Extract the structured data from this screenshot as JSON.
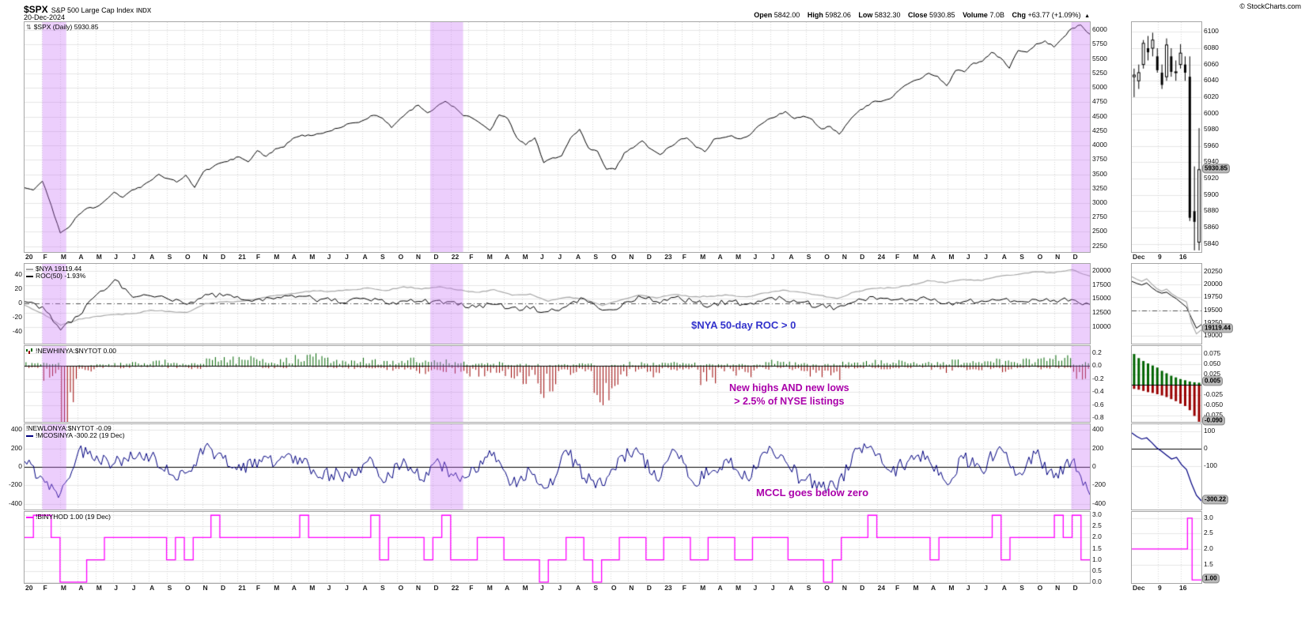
{
  "header": {
    "symbol": "$SPX",
    "name": "S&P 500 Large Cap Index",
    "exchange": "INDX",
    "date": "20-Dec-2024",
    "copyright": "© StockCharts.com",
    "quote": [
      {
        "label": "Open",
        "value": "5842.00"
      },
      {
        "label": "High",
        "value": "5982.06"
      },
      {
        "label": "Low",
        "value": "5832.30"
      },
      {
        "label": "Close",
        "value": "5930.85"
      },
      {
        "label": "Volume",
        "value": "7.0B"
      },
      {
        "label": "Chg",
        "value": "+63.77 (+1.09%)"
      }
    ],
    "arrow": "▲"
  },
  "panels": {
    "price": {
      "label": "$SPX (Daily) 5930.85"
    },
    "nya": {
      "series1_label": "$NYA 19119.44",
      "series2_label": "ROC(50) -1.93%"
    },
    "breadth": {
      "label": "!NEWHINYA:$NYTOT 0.00",
      "label2": "!NEWLONYA:$NYTOT -0.09"
    },
    "mccl": {
      "label": "!MCOSINYA -300.22 (19 Dec)"
    },
    "binyhod": {
      "label": "!BINYHOD 1.00 (19 Dec)"
    }
  },
  "x_labels": [
    "20",
    "F",
    "M",
    "A",
    "M",
    "J",
    "J",
    "A",
    "S",
    "O",
    "N",
    "D",
    "21",
    "F",
    "M",
    "A",
    "M",
    "J",
    "J",
    "A",
    "S",
    "O",
    "N",
    "D",
    "22",
    "F",
    "M",
    "A",
    "M",
    "J",
    "J",
    "A",
    "S",
    "O",
    "N",
    "D",
    "23",
    "F",
    "M",
    "A",
    "M",
    "J",
    "J",
    "A",
    "S",
    "O",
    "N",
    "D",
    "24",
    "F",
    "M",
    "A",
    "M",
    "J",
    "J",
    "A",
    "S",
    "O",
    "N",
    "D"
  ],
  "mini_x_labels": [
    "Dec",
    "9",
    "16"
  ],
  "colors": {
    "price_line": "#000000",
    "nya_line": "#a9a9a9",
    "roc_line": "#000000",
    "new_highs": "#006400",
    "new_lows": "#990000",
    "mccl_line": "#000080",
    "binyhod_line": "#ff00ff",
    "band": "rgba(199,110,247,0.34)",
    "annotation_nya": "#3333cc",
    "annotation_magenta": "#aa00aa",
    "tag_bg": "#b9b9b9"
  },
  "chart_data": [
    {
      "name": "spx_daily",
      "type": "line",
      "title": "$SPX (Daily)",
      "last_value": 5930.85,
      "x_range": [
        "Jan 2020",
        "Dec 2024"
      ],
      "values_semimonthly": [
        3265,
        3226,
        3380,
        2954,
        2480,
        2585,
        2790,
        2912,
        2930,
        3044,
        3190,
        3100,
        3225,
        3271,
        3380,
        3500,
        3425,
        3363,
        3485,
        3270,
        3545,
        3622,
        3700,
        3756,
        3800,
        3714,
        3910,
        3811,
        3940,
        3973,
        4125,
        4181,
        4170,
        4204,
        4245,
        4298,
        4370,
        4395,
        4445,
        4523,
        4470,
        4308,
        4470,
        4605,
        4700,
        4567,
        4670,
        4766,
        4670,
        4516,
        4475,
        4374,
        4260,
        4530,
        4460,
        4132,
        4010,
        4132,
        3700,
        3785,
        3820,
        4130,
        4280,
        3955,
        3900,
        3586,
        3585,
        3872,
        3960,
        4080,
        3935,
        3840,
        3970,
        4077,
        4130,
        3970,
        3890,
        4109,
        4135,
        4169,
        4115,
        4180,
        4340,
        4450,
        4505,
        4589,
        4465,
        4508,
        4450,
        4288,
        4330,
        4194,
        4400,
        4568,
        4685,
        4770,
        4780,
        4846,
        5000,
        5096,
        5150,
        5254,
        5200,
        5036,
        5300,
        5278,
        5430,
        5460,
        5615,
        5522,
        5340,
        5648,
        5620,
        5762,
        5815,
        5705,
        5870,
        6032,
        6090,
        5931
      ],
      "ylim": [
        2150,
        6140
      ],
      "yticks": [
        "6000",
        "5750",
        "5500",
        "5250",
        "5000",
        "4750",
        "4500",
        "4250",
        "4000",
        "3750",
        "3500",
        "3250",
        "3000",
        "2750",
        "2500",
        "2250"
      ],
      "highlight_bands_months": [
        [
          1.0,
          2.35
        ],
        [
          22.85,
          24.7
        ],
        [
          58.95,
          60.0
        ]
      ],
      "mini": {
        "type": "ohlc",
        "ohlc": [
          [
            6045,
            6055,
            6020,
            6047
          ],
          [
            6040,
            6060,
            6030,
            6050
          ],
          [
            6060,
            6090,
            6055,
            6086
          ],
          [
            6080,
            6095,
            6065,
            6075
          ],
          [
            6080,
            6099,
            6070,
            6090
          ],
          [
            6070,
            6080,
            6050,
            6053
          ],
          [
            6050,
            6060,
            6030,
            6035
          ],
          [
            6045,
            6092,
            6040,
            6084
          ],
          [
            6070,
            6080,
            6045,
            6051
          ],
          [
            6050,
            6065,
            6040,
            6051
          ],
          [
            6060,
            6085,
            6055,
            6074
          ],
          [
            6060,
            6070,
            6040,
            6050
          ],
          [
            6045,
            6070,
            5868,
            5872
          ],
          [
            5880,
            5935,
            5832,
            5867
          ],
          [
            5842,
            5982,
            5832,
            5931
          ]
        ],
        "ylim": [
          5830,
          6112
        ],
        "yticks": [
          "6100",
          "6080",
          "6060",
          "6040",
          "6020",
          "6000",
          "5980",
          "5960",
          "5940",
          "5920",
          "5900",
          "5880",
          "5860",
          "5840"
        ],
        "tag": "5930.85",
        "tag_value": 5930.85
      }
    },
    {
      "name": "nya_with_roc50",
      "type": "line",
      "annotation": "$NYA 50-day ROC > 0",
      "series": [
        {
          "name": "$NYA",
          "last_value": 19119.44,
          "axis": "right",
          "ylim": [
            7000,
            21300
          ],
          "values": [
            13900,
            12400,
            10300,
            11400,
            11900,
            12200,
            12400,
            13000,
            12800,
            12600,
            14200,
            14500,
            14600,
            15100,
            15700,
            16000,
            16500,
            16400,
            16600,
            17000,
            16500,
            17200,
            16800,
            17200,
            16600,
            16200,
            16700,
            15700,
            15900,
            14600,
            15300,
            15000,
            13800,
            14800,
            15700,
            15200,
            15800,
            15400,
            15500,
            15700,
            15400,
            16100,
            16600,
            16200,
            15700,
            15100,
            16300,
            16900,
            17000,
            17400,
            18300,
            17900,
            18500,
            18300,
            19100,
            19400,
            19900,
            19700,
            20250,
            19119
          ]
        },
        {
          "name": "ROC(50)",
          "last_value": -1.93,
          "axis": "left",
          "ylim": [
            -57,
            55
          ],
          "values": [
            2,
            -5,
            -38,
            -18,
            12,
            33,
            8,
            10,
            5,
            -2,
            12,
            10,
            5,
            6,
            8,
            8,
            6,
            3,
            4,
            5,
            0,
            3,
            2,
            4,
            -3,
            -6,
            -2,
            -6,
            -8,
            -12,
            -5,
            6,
            -10,
            -6,
            10,
            2,
            8,
            2,
            -4,
            3,
            -2,
            5,
            6,
            1,
            -4,
            -6,
            2,
            9,
            4,
            5,
            6,
            -1,
            2,
            3,
            4,
            2,
            5,
            4,
            5,
            -1.93
          ]
        }
      ],
      "yticks_left": [
        "40",
        "20",
        "0",
        "-20",
        "-40"
      ],
      "yticks_right": [
        "20000",
        "17500",
        "15000",
        "12500",
        "10000"
      ],
      "mini": {
        "values": [
          20150,
          20100,
          20060,
          20110,
          20010,
          19920,
          19870,
          19910,
          19820,
          19760,
          19710,
          19660,
          19260,
          19040,
          19119
        ],
        "values2": [
          20060,
          20020,
          19990,
          20030,
          19940,
          19870,
          19830,
          19850,
          19780,
          19720,
          19640,
          19560,
          19350,
          19150,
          19220
        ],
        "ylim": [
          18850,
          20400
        ],
        "yticks": [
          "20250",
          "20000",
          "19750",
          "19500",
          "19250",
          "19000"
        ],
        "tag": "19119.44",
        "tag_value": 19119.44
      }
    },
    {
      "name": "nyse_new_highs_new_lows_pct",
      "type": "bar",
      "annotation_line1": "New highs AND new lows",
      "annotation_line2": "> 2.5% of NYSE listings",
      "series": [
        {
          "name": "!NEWHINYA:$NYTOT",
          "last_value": 0.0,
          "monthly_values": [
            0.04,
            0.03,
            0.0,
            0.01,
            0.02,
            0.03,
            0.04,
            0.06,
            0.04,
            0.03,
            0.08,
            0.1,
            0.1,
            0.08,
            0.09,
            0.1,
            0.12,
            0.08,
            0.08,
            0.09,
            0.05,
            0.08,
            0.06,
            0.06,
            0.04,
            0.03,
            0.04,
            0.02,
            0.02,
            0.01,
            0.02,
            0.03,
            0.01,
            0.02,
            0.04,
            0.03,
            0.04,
            0.04,
            0.02,
            0.03,
            0.02,
            0.04,
            0.06,
            0.04,
            0.02,
            0.02,
            0.04,
            0.08,
            0.06,
            0.06,
            0.08,
            0.04,
            0.06,
            0.05,
            0.08,
            0.06,
            0.08,
            0.08,
            0.1,
            0.04
          ]
        },
        {
          "name": "!NEWLONYA:$NYTOT",
          "last_value": -0.09,
          "monthly_values": [
            -0.02,
            -0.15,
            -0.75,
            -0.05,
            -0.02,
            -0.02,
            -0.01,
            -0.01,
            -0.02,
            -0.03,
            -0.01,
            -0.01,
            -0.01,
            -0.02,
            -0.02,
            -0.01,
            -0.01,
            -0.02,
            -0.03,
            -0.02,
            -0.04,
            -0.03,
            -0.08,
            -0.06,
            -0.08,
            -0.1,
            -0.06,
            -0.12,
            -0.18,
            -0.3,
            -0.08,
            -0.06,
            -0.35,
            -0.2,
            -0.05,
            -0.1,
            -0.04,
            -0.05,
            -0.2,
            -0.05,
            -0.1,
            -0.04,
            -0.02,
            -0.05,
            -0.1,
            -0.15,
            -0.04,
            -0.02,
            -0.03,
            -0.02,
            -0.02,
            -0.06,
            -0.04,
            -0.04,
            -0.03,
            -0.06,
            -0.02,
            -0.03,
            -0.02,
            -0.12
          ]
        }
      ],
      "ylim": [
        -0.86,
        0.31
      ],
      "yticks": [
        "0.2",
        "0.0",
        "-0.2",
        "-0.4",
        "-0.6",
        "-0.8"
      ],
      "mini": {
        "highs": [
          0.075,
          0.065,
          0.058,
          0.052,
          0.047,
          0.042,
          0.034,
          0.028,
          0.022,
          0.018,
          0.014,
          0.011,
          0.008,
          0.006,
          0.005
        ],
        "lows": [
          -0.01,
          -0.012,
          -0.015,
          -0.018,
          -0.02,
          -0.023,
          -0.026,
          -0.03,
          -0.035,
          -0.04,
          -0.046,
          -0.052,
          -0.062,
          -0.076,
          -0.09
        ],
        "ylim": [
          -0.0905,
          0.0945
        ],
        "yticks": [
          "0.075",
          "0.050",
          "0.025",
          "-0.025",
          "-0.050",
          "-0.075"
        ],
        "tags": [
          {
            "label": "0.005",
            "value": 0.005
          },
          {
            "label": "-0.090",
            "value": -0.09
          }
        ]
      }
    },
    {
      "name": "mcclellan_oscillator_nyse",
      "type": "line",
      "series_name": "!MCOSINYA",
      "last_value": -300.22,
      "as_of": "19 Dec",
      "annotation": "MCCL goes below zero",
      "monthly_values": [
        60,
        -120,
        -280,
        180,
        120,
        40,
        90,
        110,
        -80,
        -60,
        220,
        90,
        -40,
        80,
        60,
        120,
        -30,
        -80,
        -120,
        60,
        -160,
        90,
        -140,
        40,
        -120,
        -60,
        160,
        -180,
        -40,
        -220,
        180,
        -120,
        -200,
        120,
        160,
        -140,
        180,
        -160,
        -60,
        40,
        -120,
        160,
        120,
        -140,
        -160,
        -250,
        200,
        180,
        -60,
        80,
        120,
        -160,
        90,
        -40,
        220,
        -80,
        140,
        -120,
        60,
        -300.22
      ],
      "ylim": [
        -460,
        460
      ],
      "yticks": [
        "400",
        "200",
        "0",
        "-200",
        "-400"
      ],
      "mini": {
        "values": [
          90,
          70,
          55,
          62,
          35,
          5,
          -15,
          -38,
          -60,
          -50,
          -92,
          -120,
          -200,
          -268,
          -300.22
        ],
        "ylim": [
          -350,
          140
        ],
        "yticks": [
          "100",
          "0",
          "-100"
        ],
        "tag": "-300.22",
        "tag_value": -300.22
      }
    },
    {
      "name": "binyhod",
      "type": "step-line",
      "series_name": "!BINYHOD",
      "last_value": 1.0,
      "as_of": "19 Dec",
      "values_semimonthly": [
        2,
        3,
        3,
        2,
        0,
        0,
        0,
        1,
        1,
        2,
        2,
        2,
        2,
        2,
        2,
        2,
        1,
        2,
        1,
        2,
        2,
        3,
        2,
        2,
        2,
        2,
        2,
        2,
        2,
        2,
        2,
        3,
        2,
        2,
        2,
        2,
        2,
        2,
        2,
        3,
        1,
        2,
        2,
        2,
        2,
        1,
        2,
        3,
        1,
        1,
        1,
        2,
        2,
        2,
        1,
        1,
        1,
        1,
        0,
        1,
        1,
        2,
        2,
        1,
        0,
        1,
        1,
        2,
        2,
        2,
        1,
        1,
        2,
        2,
        2,
        1,
        1,
        2,
        2,
        2,
        1,
        1,
        2,
        2,
        2,
        2,
        1,
        1,
        1,
        1,
        0,
        1,
        2,
        2,
        2,
        3,
        2,
        2,
        2,
        2,
        2,
        2,
        1,
        2,
        2,
        2,
        2,
        2,
        2,
        3,
        1,
        2,
        2,
        2,
        2,
        2,
        3,
        2,
        3,
        1
      ],
      "ylim": [
        -0.04,
        3.15
      ],
      "yticks": [
        "3.0",
        "2.5",
        "2.0",
        "1.5",
        "1.0",
        "0.5",
        "0.0"
      ],
      "mini": {
        "values": [
          2,
          2,
          2,
          2,
          2,
          2,
          2,
          2,
          2,
          2,
          2,
          2,
          3,
          1,
          1
        ],
        "ylim": [
          0.9,
          3.2
        ],
        "yticks": [
          "3.0",
          "2.5",
          "2.0",
          "1.5"
        ],
        "tag": "1.00",
        "tag_value": 1.0
      }
    }
  ]
}
